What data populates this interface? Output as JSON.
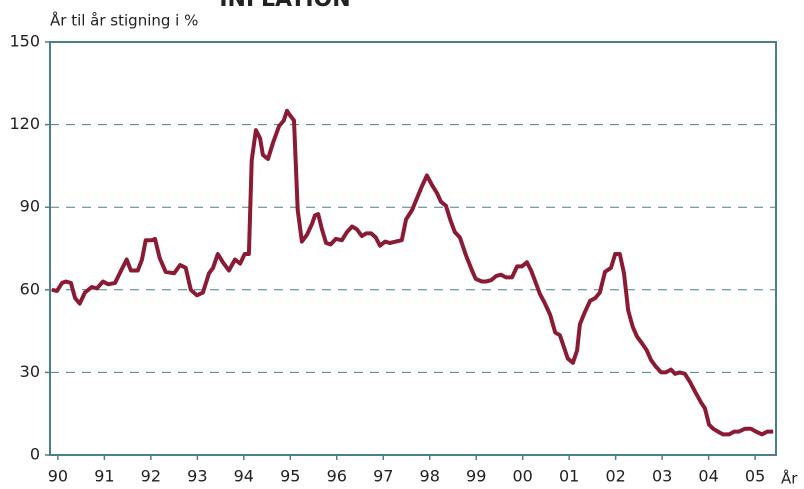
{
  "chart_data": {
    "type": "line",
    "title": "INFLATION",
    "y_label": "År til år stigning i %",
    "x_label": "År",
    "x": [
      1989.87,
      1989.98,
      1990.09,
      1990.17,
      1990.28,
      1990.37,
      1990.47,
      1990.58,
      1990.73,
      1990.84,
      1990.97,
      1991.08,
      1991.23,
      1991.36,
      1991.48,
      1991.57,
      1991.72,
      1991.81,
      1991.89,
      1992.02,
      1992.09,
      1992.19,
      1992.32,
      1992.5,
      1992.63,
      1992.75,
      1992.86,
      1992.99,
      1993.12,
      1993.25,
      1993.34,
      1993.44,
      1993.55,
      1993.68,
      1993.81,
      1993.92,
      1994.02,
      1994.11,
      1994.17,
      1994.26,
      1994.35,
      1994.41,
      1994.52,
      1994.63,
      1994.76,
      1994.86,
      1994.93,
      1994.99,
      1995.08,
      1995.16,
      1995.25,
      1995.36,
      1995.47,
      1995.53,
      1995.6,
      1995.68,
      1995.77,
      1995.87,
      1995.98,
      1996.11,
      1996.22,
      1996.33,
      1996.43,
      1996.54,
      1996.63,
      1996.74,
      1996.84,
      1996.93,
      1997.04,
      1997.14,
      1997.27,
      1997.4,
      1997.49,
      1997.62,
      1997.73,
      1997.83,
      1997.94,
      1998.05,
      1998.16,
      1998.24,
      1998.35,
      1998.44,
      1998.54,
      1998.65,
      1998.78,
      1998.91,
      1998.99,
      1999.12,
      1999.21,
      1999.32,
      1999.43,
      1999.53,
      1999.64,
      1999.77,
      1999.88,
      1999.98,
      2000.09,
      2000.18,
      2000.26,
      2000.37,
      2000.48,
      2000.59,
      2000.7,
      2000.8,
      2000.89,
      2000.97,
      2001.08,
      2001.17,
      2001.23,
      2001.34,
      2001.45,
      2001.56,
      2001.66,
      2001.77,
      2001.9,
      2001.99,
      2002.09,
      2002.18,
      2002.27,
      2002.37,
      2002.46,
      2002.57,
      2002.67,
      2002.76,
      2002.87,
      2002.98,
      2003.08,
      2003.19,
      2003.28,
      2003.38,
      2003.49,
      2003.6,
      2003.71,
      2003.84,
      2003.92,
      2004.01,
      2004.1,
      2004.2,
      2004.31,
      2004.44,
      2004.55,
      2004.65,
      2004.78,
      2004.91,
      2005.02,
      2005.15,
      2005.26,
      2005.39
    ],
    "series": [
      {
        "color": "#8b1a35",
        "values": [
          60,
          59.6,
          62.5,
          63,
          62.5,
          57,
          55,
          59,
          61,
          60.5,
          63,
          62,
          62.5,
          67,
          71,
          67,
          67,
          71,
          78,
          78,
          78.5,
          71.5,
          66.5,
          66,
          69,
          68,
          60,
          58,
          59,
          66,
          68,
          73,
          70,
          67,
          71,
          69.5,
          73,
          73,
          107,
          118,
          115,
          109,
          107.5,
          113.5,
          119.5,
          121.5,
          125,
          123.5,
          121.5,
          89,
          77.5,
          80,
          84,
          87,
          87.5,
          82,
          77,
          76.5,
          78.5,
          78,
          81,
          83,
          82,
          79.5,
          80.5,
          80.5,
          79,
          76,
          77.5,
          77,
          77.5,
          78,
          85.5,
          89,
          93.5,
          97.5,
          101.5,
          98,
          95,
          92,
          90.5,
          85.5,
          81,
          79,
          72.5,
          67,
          64,
          63,
          63,
          63.5,
          65,
          65.5,
          64.5,
          64.5,
          68.5,
          68.5,
          70,
          67,
          63.5,
          58.5,
          55,
          51,
          44.5,
          43.5,
          39,
          35,
          33.5,
          38,
          47.5,
          52,
          56,
          57,
          59,
          66.5,
          68,
          73,
          73,
          66,
          52.5,
          46.5,
          43,
          40.5,
          38,
          34.5,
          32,
          30,
          30,
          31,
          29.5,
          30,
          29.5,
          26.5,
          23,
          19,
          17,
          11,
          9.5,
          8.5,
          7.5,
          7.5,
          8.5,
          8.5,
          9.5,
          9.5,
          8.5,
          7.5,
          8.5,
          8.5
        ]
      }
    ],
    "xlim": [
      1989.83,
      2005.45
    ],
    "xticks": [
      {
        "value": 1990,
        "label": "90"
      },
      {
        "value": 1991,
        "label": "91"
      },
      {
        "value": 1992,
        "label": "92"
      },
      {
        "value": 1993,
        "label": "93"
      },
      {
        "value": 1994,
        "label": "94"
      },
      {
        "value": 1995,
        "label": "95"
      },
      {
        "value": 1996,
        "label": "96"
      },
      {
        "value": 1997,
        "label": "97"
      },
      {
        "value": 1998,
        "label": "98"
      },
      {
        "value": 1999,
        "label": "99"
      },
      {
        "value": 2000,
        "label": "00"
      },
      {
        "value": 2001,
        "label": "01"
      },
      {
        "value": 2002,
        "label": "02"
      },
      {
        "value": 2003,
        "label": "03"
      },
      {
        "value": 2004,
        "label": "04"
      },
      {
        "value": 2005,
        "label": "05"
      }
    ],
    "ylim": [
      0,
      150
    ],
    "yticks": [
      0,
      30,
      60,
      90,
      120,
      150
    ],
    "grid": true,
    "frame_color": "#4a8088"
  }
}
